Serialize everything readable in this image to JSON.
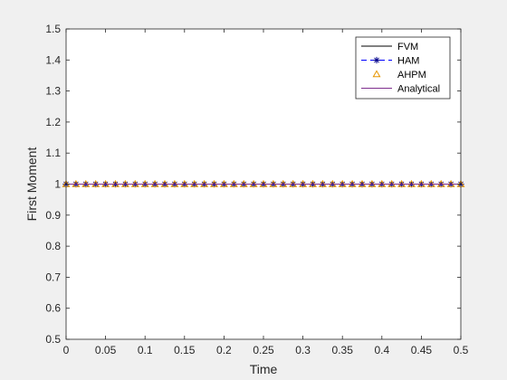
{
  "chart_data": {
    "type": "line",
    "xlabel": "Time",
    "ylabel": "First Moment",
    "xlim": [
      0,
      0.5
    ],
    "ylim": [
      0.5,
      1.5
    ],
    "xticks": [
      0,
      0.05,
      0.1,
      0.15,
      0.2,
      0.25,
      0.3,
      0.35,
      0.4,
      0.45,
      0.5
    ],
    "xtick_labels": [
      "0",
      "0.05",
      "0.1",
      "0.15",
      "0.2",
      "0.25",
      "0.3",
      "0.35",
      "0.4",
      "0.45",
      "0.5"
    ],
    "yticks": [
      0.5,
      0.6,
      0.7,
      0.8,
      0.9,
      1,
      1.1,
      1.2,
      1.3,
      1.4,
      1.5
    ],
    "ytick_labels": [
      "0.5",
      "0.6",
      "0.7",
      "0.8",
      "0.9",
      "1",
      "1.1",
      "1.2",
      "1.3",
      "1.4",
      "1.5"
    ],
    "grid": false,
    "legend_position": "top-right",
    "series": [
      {
        "name": "FVM",
        "color": "#000000",
        "line_style": "solid",
        "marker": "none",
        "x": [
          0,
          0.5
        ],
        "y": [
          1,
          1
        ]
      },
      {
        "name": "HAM",
        "color": "#0000ff",
        "line_style": "dashed",
        "marker": "asterisk",
        "marker_color": "#00008b",
        "x": [
          0,
          0.0125,
          0.025,
          0.0375,
          0.05,
          0.0625,
          0.075,
          0.0875,
          0.1,
          0.1125,
          0.125,
          0.1375,
          0.15,
          0.1625,
          0.175,
          0.1875,
          0.2,
          0.2125,
          0.225,
          0.2375,
          0.25,
          0.2625,
          0.275,
          0.2875,
          0.3,
          0.3125,
          0.325,
          0.3375,
          0.35,
          0.3625,
          0.375,
          0.3875,
          0.4,
          0.4125,
          0.425,
          0.4375,
          0.45,
          0.4625,
          0.475,
          0.4875,
          0.5
        ],
        "y": [
          1,
          1,
          1,
          1,
          1,
          1,
          1,
          1,
          1,
          1,
          1,
          1,
          1,
          1,
          1,
          1,
          1,
          1,
          1,
          1,
          1,
          1,
          1,
          1,
          1,
          1,
          1,
          1,
          1,
          1,
          1,
          1,
          1,
          1,
          1,
          1,
          1,
          1,
          1,
          1,
          1
        ]
      },
      {
        "name": "AHPM",
        "color": "#e69500",
        "line_style": "none",
        "marker": "triangle",
        "x": [
          0,
          0.0125,
          0.025,
          0.0375,
          0.05,
          0.0625,
          0.075,
          0.0875,
          0.1,
          0.1125,
          0.125,
          0.1375,
          0.15,
          0.1625,
          0.175,
          0.1875,
          0.2,
          0.2125,
          0.225,
          0.2375,
          0.25,
          0.2625,
          0.275,
          0.2875,
          0.3,
          0.3125,
          0.325,
          0.3375,
          0.35,
          0.3625,
          0.375,
          0.3875,
          0.4,
          0.4125,
          0.425,
          0.4375,
          0.45,
          0.4625,
          0.475,
          0.4875,
          0.5
        ],
        "y": [
          1,
          1,
          1,
          1,
          1,
          1,
          1,
          1,
          1,
          1,
          1,
          1,
          1,
          1,
          1,
          1,
          1,
          1,
          1,
          1,
          1,
          1,
          1,
          1,
          1,
          1,
          1,
          1,
          1,
          1,
          1,
          1,
          1,
          1,
          1,
          1,
          1,
          1,
          1,
          1,
          1
        ]
      },
      {
        "name": "Analytical",
        "color": "#7e2f8e",
        "line_style": "solid",
        "marker": "none",
        "x": [
          0,
          0.5
        ],
        "y": [
          1,
          1
        ]
      }
    ]
  }
}
